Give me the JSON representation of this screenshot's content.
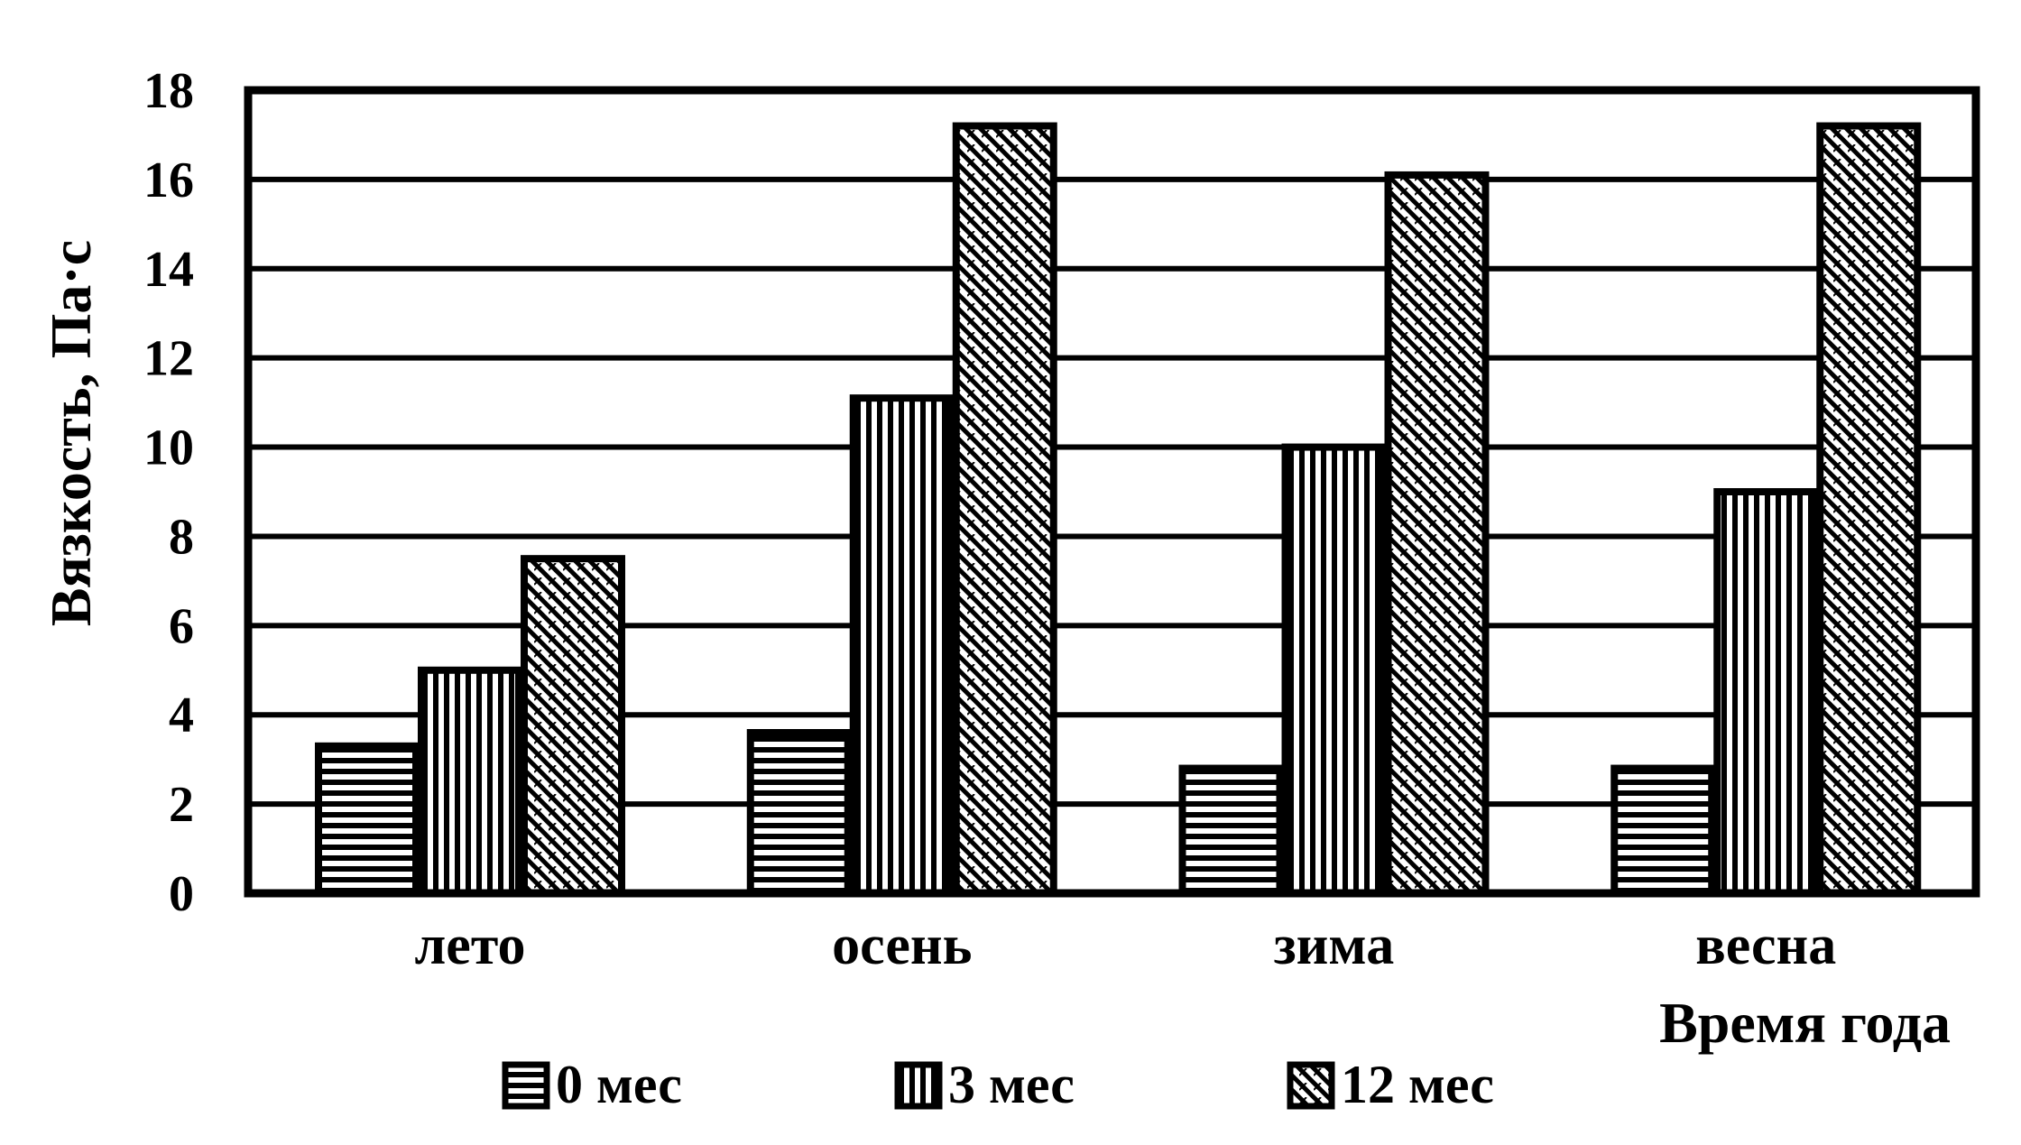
{
  "chart_data": {
    "type": "bar",
    "categories": [
      "лето",
      "осень",
      "зима",
      "весна"
    ],
    "series": [
      {
        "name": "0 мес",
        "values": [
          3.3,
          3.6,
          2.8,
          2.8
        ],
        "pattern": "horizontal"
      },
      {
        "name": "3 мес",
        "values": [
          5.0,
          11.1,
          10.0,
          9.0
        ],
        "pattern": "vertical"
      },
      {
        "name": "12 мес",
        "values": [
          7.5,
          17.2,
          16.1,
          17.2
        ],
        "pattern": "diagonal"
      }
    ],
    "ylabel": "Вязкость, Па·с",
    "xlabel": "Время года",
    "ylim": [
      0,
      18
    ],
    "yticks": [
      "0",
      "2",
      "4",
      "6",
      "8",
      "10",
      "12",
      "14",
      "16",
      "18"
    ],
    "grid": true,
    "legend_position": "bottom",
    "colors": {
      "ink": "#000000",
      "paper": "#ffffff"
    }
  }
}
